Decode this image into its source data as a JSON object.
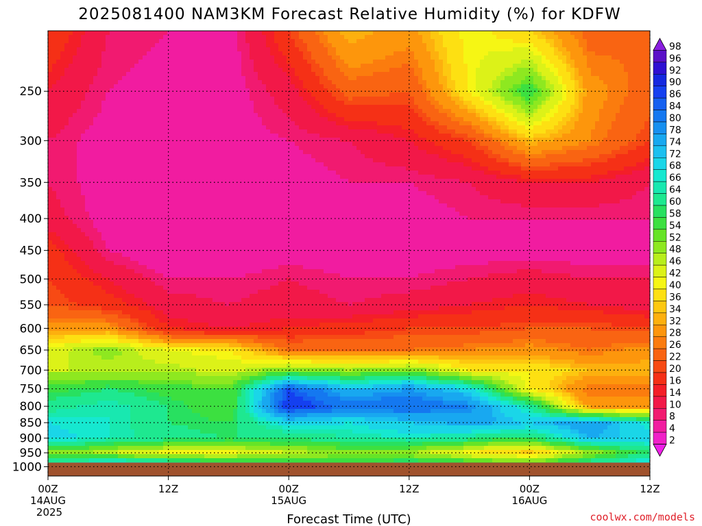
{
  "chart_data": {
    "type": "heatmap",
    "title": "2025081400 NAM3KM Forecast Relative Humidity (%) for KDFW",
    "xlabel": "Forecast Time (UTC)",
    "ylabel": "",
    "credit": "coolwx.com/models",
    "x_ticks": [
      {
        "hour": 0,
        "lines": [
          "00Z",
          "14AUG",
          "2025"
        ]
      },
      {
        "hour": 12,
        "lines": [
          "12Z"
        ]
      },
      {
        "hour": 24,
        "lines": [
          "00Z",
          "15AUG"
        ]
      },
      {
        "hour": 36,
        "lines": [
          "12Z"
        ]
      },
      {
        "hour": 48,
        "lines": [
          "00Z",
          "16AUG"
        ]
      },
      {
        "hour": 60,
        "lines": [
          "12Z"
        ]
      }
    ],
    "x_range": [
      0,
      60
    ],
    "y_ticks": [
      250,
      300,
      350,
      400,
      450,
      500,
      550,
      600,
      650,
      700,
      750,
      800,
      850,
      900,
      950,
      1000
    ],
    "y_range_hpa": [
      200,
      1035
    ],
    "y_scale": "log",
    "grid": true,
    "colorbar_labels": [
      98,
      96,
      92,
      90,
      86,
      84,
      80,
      78,
      74,
      72,
      68,
      66,
      64,
      60,
      58,
      54,
      52,
      48,
      46,
      42,
      40,
      36,
      34,
      32,
      28,
      26,
      22,
      20,
      16,
      14,
      10,
      8,
      4,
      2
    ],
    "colorbar_colors": [
      "#8a1ee0",
      "#5a10c8",
      "#2e10d2",
      "#1428e0",
      "#1440f0",
      "#1560f0",
      "#1478f0",
      "#1690f0",
      "#18a8f0",
      "#1cc0f0",
      "#1ad6e8",
      "#16e8d0",
      "#18e8b0",
      "#1ee890",
      "#28e060",
      "#3ce040",
      "#66e426",
      "#8ee820",
      "#b8ee1c",
      "#dcf218",
      "#f6f614",
      "#fde012",
      "#fdc810",
      "#fdb00e",
      "#fd960c",
      "#fb7c0e",
      "#f96412",
      "#f74a14",
      "#f53016",
      "#f41e28",
      "#f21848",
      "#f11a70",
      "#f11ca0",
      "#f020c8",
      "#f020e8"
    ],
    "ground_pressure_hpa": 985,
    "ground_color": "#a0522d",
    "cross_section_rh": {
      "note": "Relative humidity (%) by forecast hour (columns) and pressure level (rows)",
      "hours": [
        0,
        6,
        12,
        18,
        24,
        30,
        36,
        42,
        48,
        54,
        60
      ],
      "levels_hpa": [
        200,
        250,
        300,
        350,
        400,
        450,
        500,
        550,
        600,
        650,
        700,
        750,
        800,
        850,
        900,
        950,
        985
      ],
      "values": [
        [
          20,
          10,
          8,
          6,
          20,
          34,
          30,
          42,
          36,
          24,
          26
        ],
        [
          14,
          8,
          6,
          6,
          12,
          24,
          22,
          40,
          58,
          30,
          24
        ],
        [
          10,
          6,
          6,
          6,
          8,
          10,
          14,
          20,
          34,
          28,
          20
        ],
        [
          10,
          6,
          6,
          6,
          6,
          8,
          8,
          10,
          14,
          14,
          10
        ],
        [
          12,
          6,
          4,
          4,
          6,
          6,
          6,
          8,
          8,
          8,
          8
        ],
        [
          18,
          8,
          4,
          4,
          6,
          6,
          6,
          6,
          6,
          6,
          6
        ],
        [
          20,
          14,
          8,
          8,
          10,
          8,
          8,
          10,
          12,
          10,
          10
        ],
        [
          22,
          18,
          12,
          10,
          12,
          10,
          12,
          14,
          16,
          14,
          12
        ],
        [
          30,
          30,
          16,
          14,
          16,
          18,
          20,
          20,
          22,
          22,
          20
        ],
        [
          44,
          50,
          42,
          40,
          26,
          26,
          26,
          28,
          30,
          26,
          30
        ],
        [
          46,
          46,
          48,
          44,
          52,
          48,
          52,
          40,
          40,
          34,
          34
        ],
        [
          56,
          60,
          56,
          54,
          86,
          74,
          78,
          70,
          40,
          26,
          26
        ],
        [
          62,
          66,
          60,
          54,
          90,
          82,
          84,
          80,
          64,
          30,
          30
        ],
        [
          68,
          66,
          60,
          58,
          70,
          68,
          72,
          76,
          72,
          78,
          66
        ],
        [
          70,
          66,
          62,
          60,
          60,
          64,
          66,
          62,
          58,
          74,
          70
        ],
        [
          50,
          46,
          40,
          40,
          46,
          50,
          48,
          40,
          34,
          48,
          60
        ],
        [
          64,
          72,
          66,
          62,
          60,
          58,
          62,
          58,
          54,
          64,
          70
        ]
      ]
    }
  }
}
